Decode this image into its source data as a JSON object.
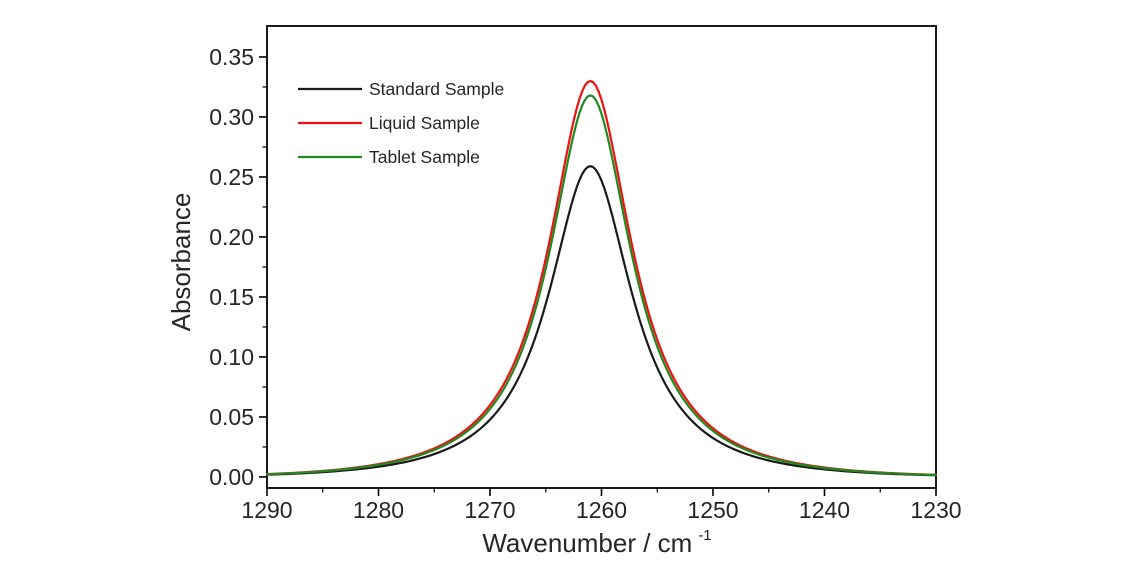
{
  "figure": {
    "background": "#ffffff",
    "frame_color": "#000000",
    "text_color": "#262626"
  },
  "chart_data": {
    "type": "line",
    "title": "",
    "xlabel": "Wavenumber / cm",
    "xlabel_superscript": "-1",
    "ylabel": "Absorbance",
    "x_axis": {
      "min": 1290,
      "max": 1230,
      "reversed": true,
      "major_ticks": [
        1290,
        1280,
        1270,
        1260,
        1250,
        1240,
        1230
      ],
      "tick_labels": [
        "1290",
        "1280",
        "1270",
        "1260",
        "1250",
        "1240",
        "1230"
      ],
      "minor_ticks": [
        1285,
        1275,
        1265,
        1255,
        1245,
        1235
      ]
    },
    "y_axis": {
      "min": -0.0092,
      "max": 0.3758,
      "major_ticks": [
        0.0,
        0.05,
        0.1,
        0.15,
        0.2,
        0.25,
        0.3,
        0.35
      ],
      "tick_labels": [
        "0.00",
        "0.05",
        "0.10",
        "0.15",
        "0.20",
        "0.25",
        "0.30",
        "0.35"
      ],
      "minor_ticks": [
        0.025,
        0.075,
        0.125,
        0.175,
        0.225,
        0.275,
        0.325
      ]
    },
    "grid": false,
    "legend": {
      "position": "upper-left-inside",
      "entries": [
        "Standard Sample",
        "Liquid Sample",
        "Tablet Sample"
      ]
    },
    "peak_center_wavenumber": 1261,
    "series": [
      {
        "name": "Standard Sample",
        "color": "#1a1a1a",
        "profile": {
          "shape": "damped-lorentzian",
          "center": 1261,
          "height": 0.259,
          "half_width": 4.6,
          "gauss_damping": 700
        },
        "x": [
          1290,
          1288,
          1286,
          1284,
          1282,
          1280,
          1278,
          1276,
          1274,
          1272,
          1270,
          1268,
          1266,
          1264,
          1262,
          1260,
          1258,
          1256,
          1254,
          1252,
          1250,
          1248,
          1246,
          1244,
          1242,
          1240,
          1238,
          1236,
          1234,
          1232,
          1230
        ],
        "y": [
          0.0019,
          0.0026,
          0.0035,
          0.0047,
          0.0063,
          0.0086,
          0.0117,
          0.0161,
          0.0226,
          0.0324,
          0.0477,
          0.0728,
          0.1145,
          0.1794,
          0.2468,
          0.2468,
          0.1794,
          0.1145,
          0.0728,
          0.0477,
          0.0324,
          0.0226,
          0.0161,
          0.0117,
          0.0086,
          0.0063,
          0.0047,
          0.0035,
          0.0026,
          0.0019,
          0.0014
        ]
      },
      {
        "name": "Liquid Sample",
        "color": "#ee1111",
        "profile": {
          "shape": "damped-lorentzian",
          "center": 1261,
          "height": 0.33,
          "half_width": 4.55,
          "gauss_damping": 700
        },
        "x": [
          1290,
          1288,
          1286,
          1284,
          1282,
          1280,
          1278,
          1276,
          1274,
          1272,
          1270,
          1268,
          1266,
          1264,
          1262,
          1260,
          1258,
          1256,
          1254,
          1252,
          1250,
          1248,
          1246,
          1244,
          1242,
          1240,
          1238,
          1236,
          1234,
          1232,
          1230
        ],
        "y": [
          0.0024,
          0.0032,
          0.0043,
          0.0058,
          0.0079,
          0.0107,
          0.0146,
          0.0202,
          0.0283,
          0.0406,
          0.0598,
          0.0914,
          0.1442,
          0.2271,
          0.3144,
          0.3144,
          0.2271,
          0.1442,
          0.0914,
          0.0598,
          0.0406,
          0.0283,
          0.0202,
          0.0146,
          0.0107,
          0.0079,
          0.0058,
          0.0043,
          0.0032,
          0.0024,
          0.0018
        ]
      },
      {
        "name": "Tablet Sample",
        "color": "#1f8a1f",
        "profile": {
          "shape": "damped-lorentzian",
          "center": 1261,
          "height": 0.318,
          "half_width": 4.5,
          "gauss_damping": 700
        },
        "x": [
          1290,
          1288,
          1286,
          1284,
          1282,
          1280,
          1278,
          1276,
          1274,
          1272,
          1270,
          1268,
          1266,
          1264,
          1262,
          1260,
          1258,
          1256,
          1254,
          1252,
          1250,
          1248,
          1246,
          1244,
          1242,
          1240,
          1238,
          1236,
          1234,
          1232,
          1230
        ],
        "y": [
          0.0022,
          0.003,
          0.0041,
          0.0055,
          0.0074,
          0.0101,
          0.0138,
          0.019,
          0.0267,
          0.0384,
          0.0566,
          0.0867,
          0.1373,
          0.2173,
          0.3026,
          0.3026,
          0.2173,
          0.1373,
          0.0867,
          0.0566,
          0.0384,
          0.0267,
          0.019,
          0.0138,
          0.0101,
          0.0074,
          0.0055,
          0.0041,
          0.003,
          0.0022,
          0.0017
        ]
      }
    ]
  }
}
